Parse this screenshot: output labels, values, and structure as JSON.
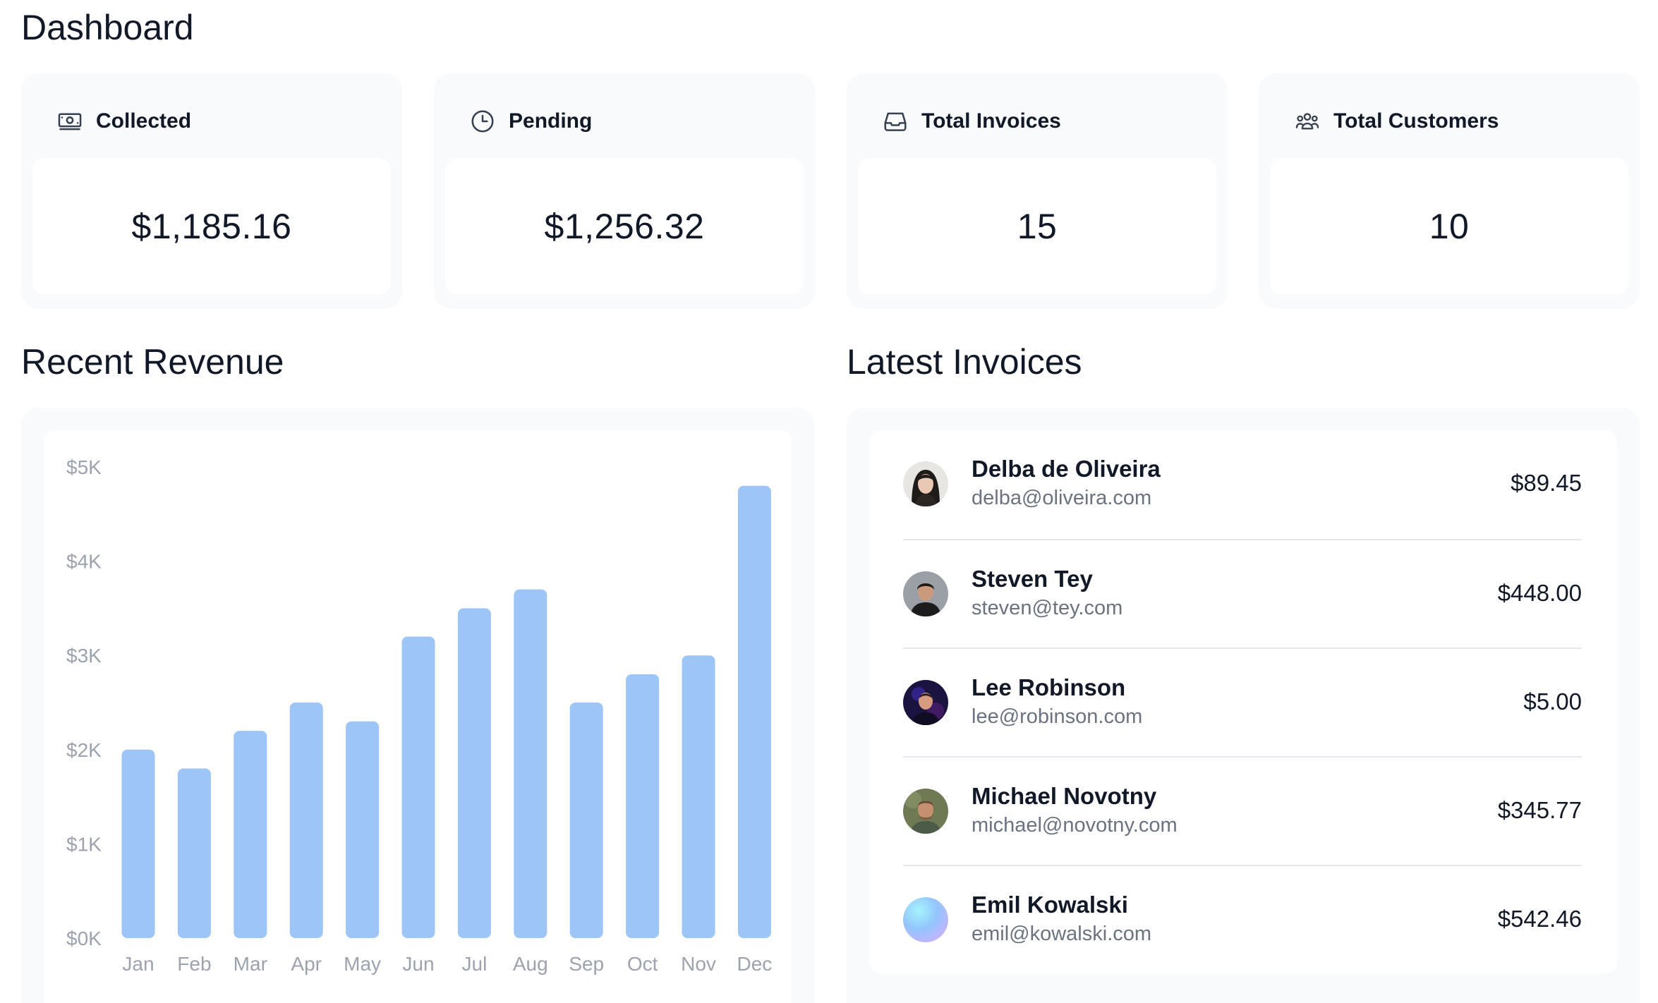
{
  "header": {
    "title": "Dashboard"
  },
  "cards": [
    {
      "label": "Collected",
      "value": "$1,185.16",
      "icon": "banknotes-icon"
    },
    {
      "label": "Pending",
      "value": "$1,256.32",
      "icon": "clock-icon"
    },
    {
      "label": "Total Invoices",
      "value": "15",
      "icon": "inbox-icon"
    },
    {
      "label": "Total Customers",
      "value": "10",
      "icon": "user-group-icon"
    }
  ],
  "revenue": {
    "title": "Recent Revenue"
  },
  "invoices": {
    "title": "Latest Invoices",
    "items": [
      {
        "name": "Delba de Oliveira",
        "email": "delba@oliveira.com",
        "amount": "$89.45"
      },
      {
        "name": "Steven Tey",
        "email": "steven@tey.com",
        "amount": "$448.00"
      },
      {
        "name": "Lee Robinson",
        "email": "lee@robinson.com",
        "amount": "$5.00"
      },
      {
        "name": "Michael Novotny",
        "email": "michael@novotny.com",
        "amount": "$345.77"
      },
      {
        "name": "Emil Kowalski",
        "email": "emil@kowalski.com",
        "amount": "$542.46"
      }
    ]
  },
  "colors": {
    "bar": "#9ec5f8",
    "tick": "#9ca3af",
    "card_bg": "#f9fafb"
  },
  "chart_data": {
    "type": "bar",
    "categories": [
      "Jan",
      "Feb",
      "Mar",
      "Apr",
      "May",
      "Jun",
      "Jul",
      "Aug",
      "Sep",
      "Oct",
      "Nov",
      "Dec"
    ],
    "values": [
      2000,
      1800,
      2200,
      2500,
      2300,
      3200,
      3500,
      3700,
      2500,
      2800,
      3000,
      4800
    ],
    "ylim": [
      0,
      5000
    ],
    "yticks": [
      "$0K",
      "$1K",
      "$2K",
      "$3K",
      "$4K",
      "$5K"
    ],
    "title": "",
    "xlabel": "",
    "ylabel": "",
    "grid": false
  }
}
